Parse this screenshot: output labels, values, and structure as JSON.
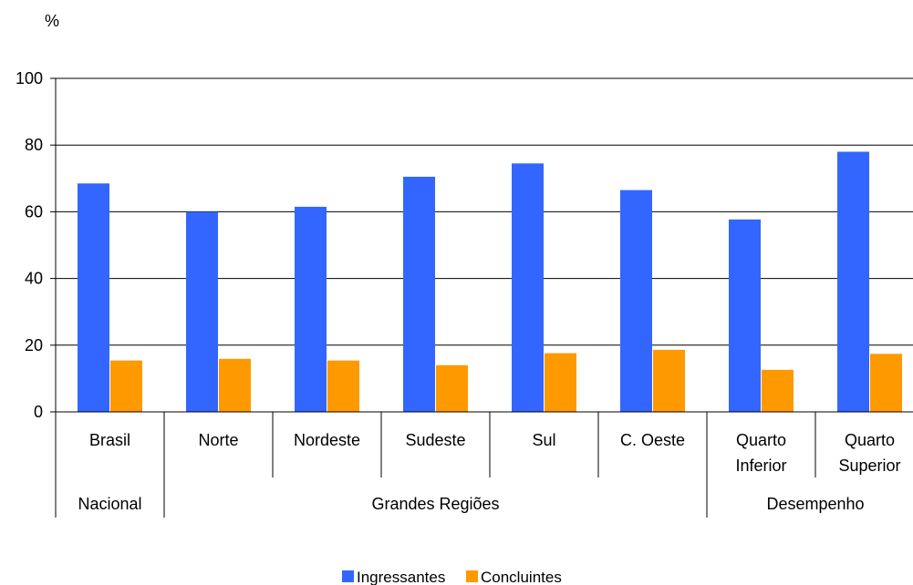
{
  "chart_data": {
    "type": "bar",
    "ylabel": "%",
    "ylim": [
      0,
      100
    ],
    "yticks": [
      0,
      20,
      40,
      60,
      80,
      100
    ],
    "grid": true,
    "legend_position": "bottom",
    "categories": [
      [
        "Brasil"
      ],
      [
        "Norte"
      ],
      [
        "Nordeste"
      ],
      [
        "Sudeste"
      ],
      [
        "Sul"
      ],
      [
        "C. Oeste"
      ],
      [
        "Quarto",
        "Inferior"
      ],
      [
        "Quarto",
        "Superior"
      ]
    ],
    "groups": [
      {
        "label": "Nacional",
        "count": 1
      },
      {
        "label": "Grandes Regiões",
        "count": 5
      },
      {
        "label": "Desempenho",
        "count": 2
      }
    ],
    "series": [
      {
        "name": "Ingressantes",
        "color": "#3366FF",
        "values": [
          68.5,
          60.0,
          61.5,
          70.5,
          74.5,
          66.5,
          57.7,
          78.0
        ]
      },
      {
        "name": "Concluintes",
        "color": "#FF9900",
        "values": [
          15.4,
          15.9,
          15.4,
          14.0,
          17.6,
          18.6,
          12.6,
          17.4
        ]
      }
    ]
  }
}
